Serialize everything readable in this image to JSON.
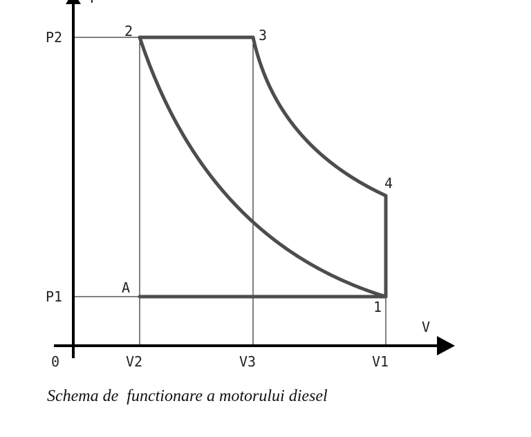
{
  "diagram": {
    "axes": {
      "y_label": "P",
      "x_label": "V",
      "origin_label": "0"
    },
    "pressure_labels": [
      "P2",
      "P1"
    ],
    "volume_labels": [
      "V2",
      "V3",
      "V1"
    ],
    "points": [
      "1",
      "2",
      "3",
      "4",
      "A"
    ],
    "cycle_color": "#4d4d4d",
    "line_color": "#000000"
  },
  "caption": "Schema de  functionare a motorului diesel"
}
